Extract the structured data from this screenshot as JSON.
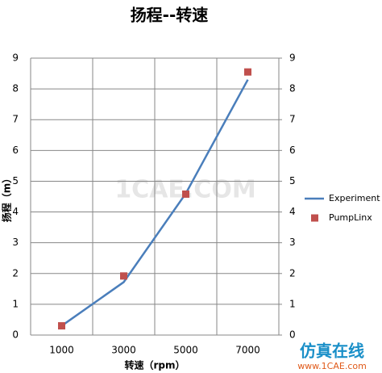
{
  "chart_data": {
    "type": "line",
    "title": "扬程--转速",
    "x_label": "转速（rpm）",
    "y_label": "扬程（m）",
    "categories": [
      "1000",
      "3000",
      "5000",
      "7000"
    ],
    "series": [
      {
        "name": "Experiment",
        "color": "#4a7ebb",
        "style": "line",
        "values": [
          0.3,
          1.72,
          4.6,
          8.3
        ]
      },
      {
        "name": "PumpLinx",
        "color": "#c0504d",
        "style": "marker",
        "values": [
          0.3,
          1.92,
          4.58,
          8.55
        ]
      }
    ],
    "ylim": [
      0,
      9
    ],
    "yticks": [
      0,
      1,
      2,
      3,
      4,
      5,
      6,
      7,
      8,
      9
    ],
    "y2lim": [
      0,
      9
    ],
    "y2ticks": [
      0,
      1,
      2,
      3,
      4,
      5,
      6,
      7,
      8,
      9
    ],
    "grid": true,
    "legend": "right",
    "watermarks": [
      "1CAE.COM",
      "仿真在线",
      "www.1CAE.com"
    ]
  }
}
